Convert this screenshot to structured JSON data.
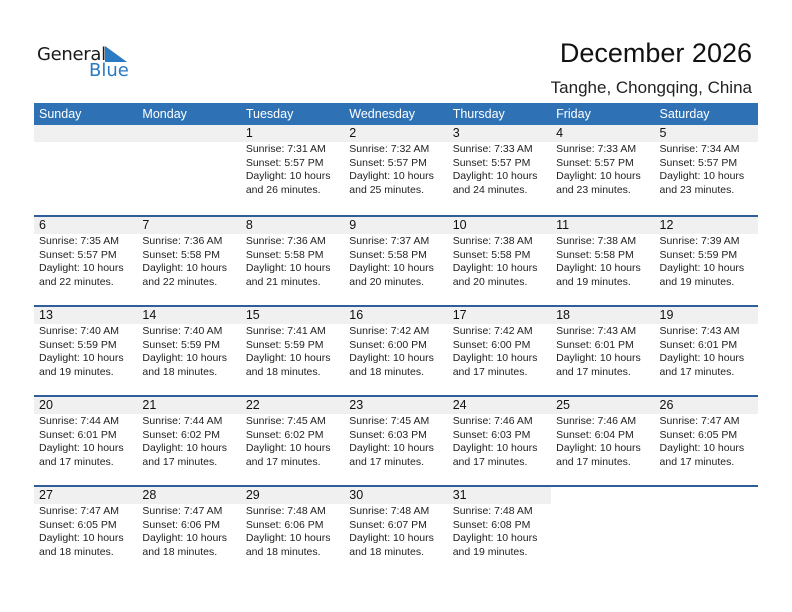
{
  "logo": {
    "line1": "General",
    "line2": "Blue",
    "brand_color": "#2a7ac2"
  },
  "title": "December 2026",
  "location": "Tanghe, Chongqing, China",
  "header_color": "#2e72b5",
  "weekdays": [
    "Sunday",
    "Monday",
    "Tuesday",
    "Wednesday",
    "Thursday",
    "Friday",
    "Saturday"
  ],
  "weeks": [
    [
      null,
      null,
      {
        "day": "1",
        "sunrise": "Sunrise: 7:31 AM",
        "sunset": "Sunset: 5:57 PM",
        "daylight1": "Daylight: 10 hours",
        "daylight2": "and 26 minutes."
      },
      {
        "day": "2",
        "sunrise": "Sunrise: 7:32 AM",
        "sunset": "Sunset: 5:57 PM",
        "daylight1": "Daylight: 10 hours",
        "daylight2": "and 25 minutes."
      },
      {
        "day": "3",
        "sunrise": "Sunrise: 7:33 AM",
        "sunset": "Sunset: 5:57 PM",
        "daylight1": "Daylight: 10 hours",
        "daylight2": "and 24 minutes."
      },
      {
        "day": "4",
        "sunrise": "Sunrise: 7:33 AM",
        "sunset": "Sunset: 5:57 PM",
        "daylight1": "Daylight: 10 hours",
        "daylight2": "and 23 minutes."
      },
      {
        "day": "5",
        "sunrise": "Sunrise: 7:34 AM",
        "sunset": "Sunset: 5:57 PM",
        "daylight1": "Daylight: 10 hours",
        "daylight2": "and 23 minutes."
      }
    ],
    [
      {
        "day": "6",
        "sunrise": "Sunrise: 7:35 AM",
        "sunset": "Sunset: 5:57 PM",
        "daylight1": "Daylight: 10 hours",
        "daylight2": "and 22 minutes."
      },
      {
        "day": "7",
        "sunrise": "Sunrise: 7:36 AM",
        "sunset": "Sunset: 5:58 PM",
        "daylight1": "Daylight: 10 hours",
        "daylight2": "and 22 minutes."
      },
      {
        "day": "8",
        "sunrise": "Sunrise: 7:36 AM",
        "sunset": "Sunset: 5:58 PM",
        "daylight1": "Daylight: 10 hours",
        "daylight2": "and 21 minutes."
      },
      {
        "day": "9",
        "sunrise": "Sunrise: 7:37 AM",
        "sunset": "Sunset: 5:58 PM",
        "daylight1": "Daylight: 10 hours",
        "daylight2": "and 20 minutes."
      },
      {
        "day": "10",
        "sunrise": "Sunrise: 7:38 AM",
        "sunset": "Sunset: 5:58 PM",
        "daylight1": "Daylight: 10 hours",
        "daylight2": "and 20 minutes."
      },
      {
        "day": "11",
        "sunrise": "Sunrise: 7:38 AM",
        "sunset": "Sunset: 5:58 PM",
        "daylight1": "Daylight: 10 hours",
        "daylight2": "and 19 minutes."
      },
      {
        "day": "12",
        "sunrise": "Sunrise: 7:39 AM",
        "sunset": "Sunset: 5:59 PM",
        "daylight1": "Daylight: 10 hours",
        "daylight2": "and 19 minutes."
      }
    ],
    [
      {
        "day": "13",
        "sunrise": "Sunrise: 7:40 AM",
        "sunset": "Sunset: 5:59 PM",
        "daylight1": "Daylight: 10 hours",
        "daylight2": "and 19 minutes."
      },
      {
        "day": "14",
        "sunrise": "Sunrise: 7:40 AM",
        "sunset": "Sunset: 5:59 PM",
        "daylight1": "Daylight: 10 hours",
        "daylight2": "and 18 minutes."
      },
      {
        "day": "15",
        "sunrise": "Sunrise: 7:41 AM",
        "sunset": "Sunset: 5:59 PM",
        "daylight1": "Daylight: 10 hours",
        "daylight2": "and 18 minutes."
      },
      {
        "day": "16",
        "sunrise": "Sunrise: 7:42 AM",
        "sunset": "Sunset: 6:00 PM",
        "daylight1": "Daylight: 10 hours",
        "daylight2": "and 18 minutes."
      },
      {
        "day": "17",
        "sunrise": "Sunrise: 7:42 AM",
        "sunset": "Sunset: 6:00 PM",
        "daylight1": "Daylight: 10 hours",
        "daylight2": "and 17 minutes."
      },
      {
        "day": "18",
        "sunrise": "Sunrise: 7:43 AM",
        "sunset": "Sunset: 6:01 PM",
        "daylight1": "Daylight: 10 hours",
        "daylight2": "and 17 minutes."
      },
      {
        "day": "19",
        "sunrise": "Sunrise: 7:43 AM",
        "sunset": "Sunset: 6:01 PM",
        "daylight1": "Daylight: 10 hours",
        "daylight2": "and 17 minutes."
      }
    ],
    [
      {
        "day": "20",
        "sunrise": "Sunrise: 7:44 AM",
        "sunset": "Sunset: 6:01 PM",
        "daylight1": "Daylight: 10 hours",
        "daylight2": "and 17 minutes."
      },
      {
        "day": "21",
        "sunrise": "Sunrise: 7:44 AM",
        "sunset": "Sunset: 6:02 PM",
        "daylight1": "Daylight: 10 hours",
        "daylight2": "and 17 minutes."
      },
      {
        "day": "22",
        "sunrise": "Sunrise: 7:45 AM",
        "sunset": "Sunset: 6:02 PM",
        "daylight1": "Daylight: 10 hours",
        "daylight2": "and 17 minutes."
      },
      {
        "day": "23",
        "sunrise": "Sunrise: 7:45 AM",
        "sunset": "Sunset: 6:03 PM",
        "daylight1": "Daylight: 10 hours",
        "daylight2": "and 17 minutes."
      },
      {
        "day": "24",
        "sunrise": "Sunrise: 7:46 AM",
        "sunset": "Sunset: 6:03 PM",
        "daylight1": "Daylight: 10 hours",
        "daylight2": "and 17 minutes."
      },
      {
        "day": "25",
        "sunrise": "Sunrise: 7:46 AM",
        "sunset": "Sunset: 6:04 PM",
        "daylight1": "Daylight: 10 hours",
        "daylight2": "and 17 minutes."
      },
      {
        "day": "26",
        "sunrise": "Sunrise: 7:47 AM",
        "sunset": "Sunset: 6:05 PM",
        "daylight1": "Daylight: 10 hours",
        "daylight2": "and 17 minutes."
      }
    ],
    [
      {
        "day": "27",
        "sunrise": "Sunrise: 7:47 AM",
        "sunset": "Sunset: 6:05 PM",
        "daylight1": "Daylight: 10 hours",
        "daylight2": "and 18 minutes."
      },
      {
        "day": "28",
        "sunrise": "Sunrise: 7:47 AM",
        "sunset": "Sunset: 6:06 PM",
        "daylight1": "Daylight: 10 hours",
        "daylight2": "and 18 minutes."
      },
      {
        "day": "29",
        "sunrise": "Sunrise: 7:48 AM",
        "sunset": "Sunset: 6:06 PM",
        "daylight1": "Daylight: 10 hours",
        "daylight2": "and 18 minutes."
      },
      {
        "day": "30",
        "sunrise": "Sunrise: 7:48 AM",
        "sunset": "Sunset: 6:07 PM",
        "daylight1": "Daylight: 10 hours",
        "daylight2": "and 18 minutes."
      },
      {
        "day": "31",
        "sunrise": "Sunrise: 7:48 AM",
        "sunset": "Sunset: 6:08 PM",
        "daylight1": "Daylight: 10 hours",
        "daylight2": "and 19 minutes."
      },
      null,
      null
    ]
  ]
}
